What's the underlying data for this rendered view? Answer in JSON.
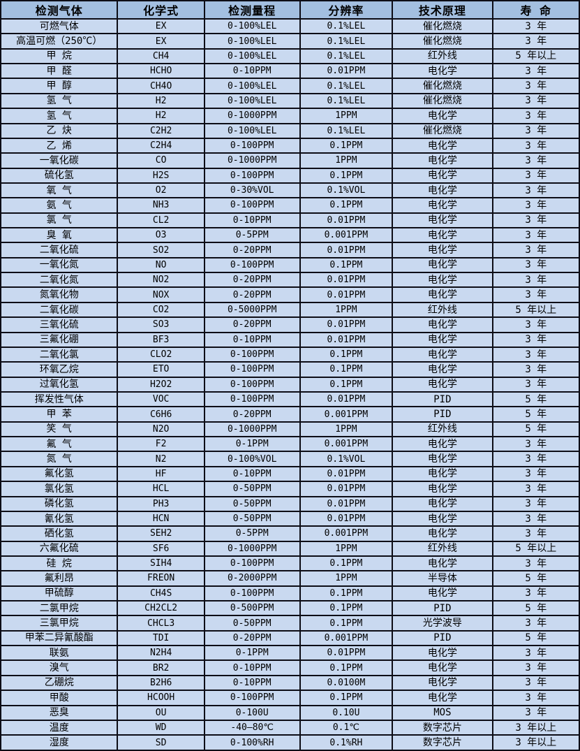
{
  "colors": {
    "header_bg": "#a3bfe0",
    "row_bg": "#c9d9f0",
    "border": "#0d0d16",
    "text": "#000000"
  },
  "table": {
    "columns": [
      "检测气体",
      "化学式",
      "检测量程",
      "分辨率",
      "技术原理",
      "寿 命"
    ],
    "column_keys": [
      "gas",
      "formula",
      "range",
      "resolution",
      "principle",
      "lifespan"
    ],
    "rows": [
      [
        "可燃气体",
        "EX",
        "0-100%LEL",
        "0.1%LEL",
        "催化燃烧",
        "3 年"
      ],
      [
        "高温可燃（250℃）",
        "EX",
        "0-100%LEL",
        "0.1%LEL",
        "催化燃烧",
        "3 年"
      ],
      [
        "甲 烷",
        "CH4",
        "0-100%LEL",
        "0.1%LEL",
        "红外线",
        "5 年以上"
      ],
      [
        "甲 醛",
        "HCHO",
        "0-10PPM",
        "0.01PPM",
        "电化学",
        "3 年"
      ],
      [
        "甲 醇",
        "CH4O",
        "0-100%LEL",
        "0.1%LEL",
        "催化燃烧",
        "3 年"
      ],
      [
        "氢 气",
        "H2",
        "0-100%LEL",
        "0.1%LEL",
        "催化燃烧",
        "3 年"
      ],
      [
        "氢 气",
        "H2",
        "0-1000PPM",
        "1PPM",
        "电化学",
        "3 年"
      ],
      [
        "乙 炔",
        "C2H2",
        "0-100%LEL",
        "0.1%LEL",
        "催化燃烧",
        "3 年"
      ],
      [
        "乙 烯",
        "C2H4",
        "0-100PPM",
        "0.1PPM",
        "电化学",
        "3 年"
      ],
      [
        "一氧化碳",
        "CO",
        "0-1000PPM",
        "1PPM",
        "电化学",
        "3 年"
      ],
      [
        "硫化氢",
        "H2S",
        "0-100PPM",
        "0.1PPM",
        "电化学",
        "3 年"
      ],
      [
        "氧 气",
        "O2",
        "0-30%VOL",
        "0.1%VOL",
        "电化学",
        "3 年"
      ],
      [
        "氨 气",
        "NH3",
        "0-100PPM",
        "0.1PPM",
        "电化学",
        "3 年"
      ],
      [
        "氯 气",
        "CL2",
        "0-10PPM",
        "0.01PPM",
        "电化学",
        "3 年"
      ],
      [
        "臭 氧",
        "O3",
        "0-5PPM",
        "0.001PPM",
        "电化学",
        "3 年"
      ],
      [
        "二氧化硫",
        "SO2",
        "0-20PPM",
        "0.01PPM",
        "电化学",
        "3 年"
      ],
      [
        "一氧化氮",
        "NO",
        "0-100PPM",
        "0.1PPM",
        "电化学",
        "3 年"
      ],
      [
        "二氧化氮",
        "NO2",
        "0-20PPM",
        "0.01PPM",
        "电化学",
        "3 年"
      ],
      [
        "氮氧化物",
        "NOX",
        "0-20PPM",
        "0.01PPM",
        "电化学",
        "3 年"
      ],
      [
        "二氧化碳",
        "CO2",
        "0-5000PPM",
        "1PPM",
        "红外线",
        "5 年以上"
      ],
      [
        "三氧化硫",
        "SO3",
        "0-20PPM",
        "0.01PPM",
        "电化学",
        "3 年"
      ],
      [
        "三氟化硼",
        "BF3",
        "0-10PPM",
        "0.01PPM",
        "电化学",
        "3 年"
      ],
      [
        "二氧化氯",
        "CLO2",
        "0-100PPM",
        "0.1PPM",
        "电化学",
        "3 年"
      ],
      [
        "环氧乙烷",
        "ETO",
        "0-100PPM",
        "0.1PPM",
        "电化学",
        "3 年"
      ],
      [
        "过氧化氢",
        "H2O2",
        "0-100PPM",
        "0.1PPM",
        "电化学",
        "3 年"
      ],
      [
        "挥发性气体",
        "VOC",
        "0-100PPM",
        "0.01PPM",
        "PID",
        "5 年"
      ],
      [
        "甲 苯",
        "C6H6",
        "0-20PPM",
        "0.001PPM",
        "PID",
        "5 年"
      ],
      [
        "笑 气",
        "N2O",
        "0-1000PPM",
        "1PPM",
        "红外线",
        "5 年"
      ],
      [
        "氟 气",
        "F2",
        "0-1PPM",
        "0.001PPM",
        "电化学",
        "3 年"
      ],
      [
        "氮 气",
        "N2",
        "0-100%VOL",
        "0.1%VOL",
        "电化学",
        "3 年"
      ],
      [
        "氟化氢",
        "HF",
        "0-10PPM",
        "0.01PPM",
        "电化学",
        "3 年"
      ],
      [
        "氯化氢",
        "HCL",
        "0-50PPM",
        "0.01PPM",
        "电化学",
        "3 年"
      ],
      [
        "磷化氢",
        "PH3",
        "0-50PPM",
        "0.01PPM",
        "电化学",
        "3 年"
      ],
      [
        "氰化氢",
        "HCN",
        "0-50PPM",
        "0.01PPM",
        "电化学",
        "3 年"
      ],
      [
        "硒化氢",
        "SEH2",
        "0-5PPM",
        "0.001PPM",
        "电化学",
        "3 年"
      ],
      [
        "六氟化硫",
        "SF6",
        "0-1000PPM",
        "1PPM",
        "红外线",
        "5 年以上"
      ],
      [
        "硅 烷",
        "SIH4",
        "0-100PPM",
        "0.1PPM",
        "电化学",
        "3 年"
      ],
      [
        "氟利昂",
        "FREON",
        "0-2000PPM",
        "1PPM",
        "半导体",
        "5 年"
      ],
      [
        "甲硫醇",
        "CH4S",
        "0-100PPM",
        "0.1PPM",
        "电化学",
        "3 年"
      ],
      [
        "二氯甲烷",
        "CH2CL2",
        "0-500PPM",
        "0.1PPM",
        "PID",
        "5 年"
      ],
      [
        "三氯甲烷",
        "CHCL3",
        "0-50PPM",
        "0.1PPM",
        "光学波导",
        "3 年"
      ],
      [
        "甲苯二异氰酸酯",
        "TDI",
        "0-20PPM",
        "0.001PPM",
        "PID",
        "5 年"
      ],
      [
        "联氨",
        "N2H4",
        "0-1PPM",
        "0.01PPM",
        "电化学",
        "3 年"
      ],
      [
        "溴气",
        "BR2",
        "0-10PPM",
        "0.1PPM",
        "电化学",
        "3 年"
      ],
      [
        "乙硼烷",
        "B2H6",
        "0-10PPM",
        "0.0100M",
        "电化学",
        "3 年"
      ],
      [
        "甲酸",
        "HCOOH",
        "0-100PPM",
        "0.1PPM",
        "电化学",
        "3 年"
      ],
      [
        "恶臭",
        "OU",
        "0-100U",
        "0.10U",
        "MOS",
        "3 年"
      ],
      [
        "温度",
        "WD",
        "-40—80℃",
        "0.1℃",
        "数字芯片",
        "3 年以上"
      ],
      [
        "湿度",
        "SD",
        "0-100%RH",
        "0.1%RH",
        "数字芯片",
        "3 年以上"
      ]
    ]
  }
}
